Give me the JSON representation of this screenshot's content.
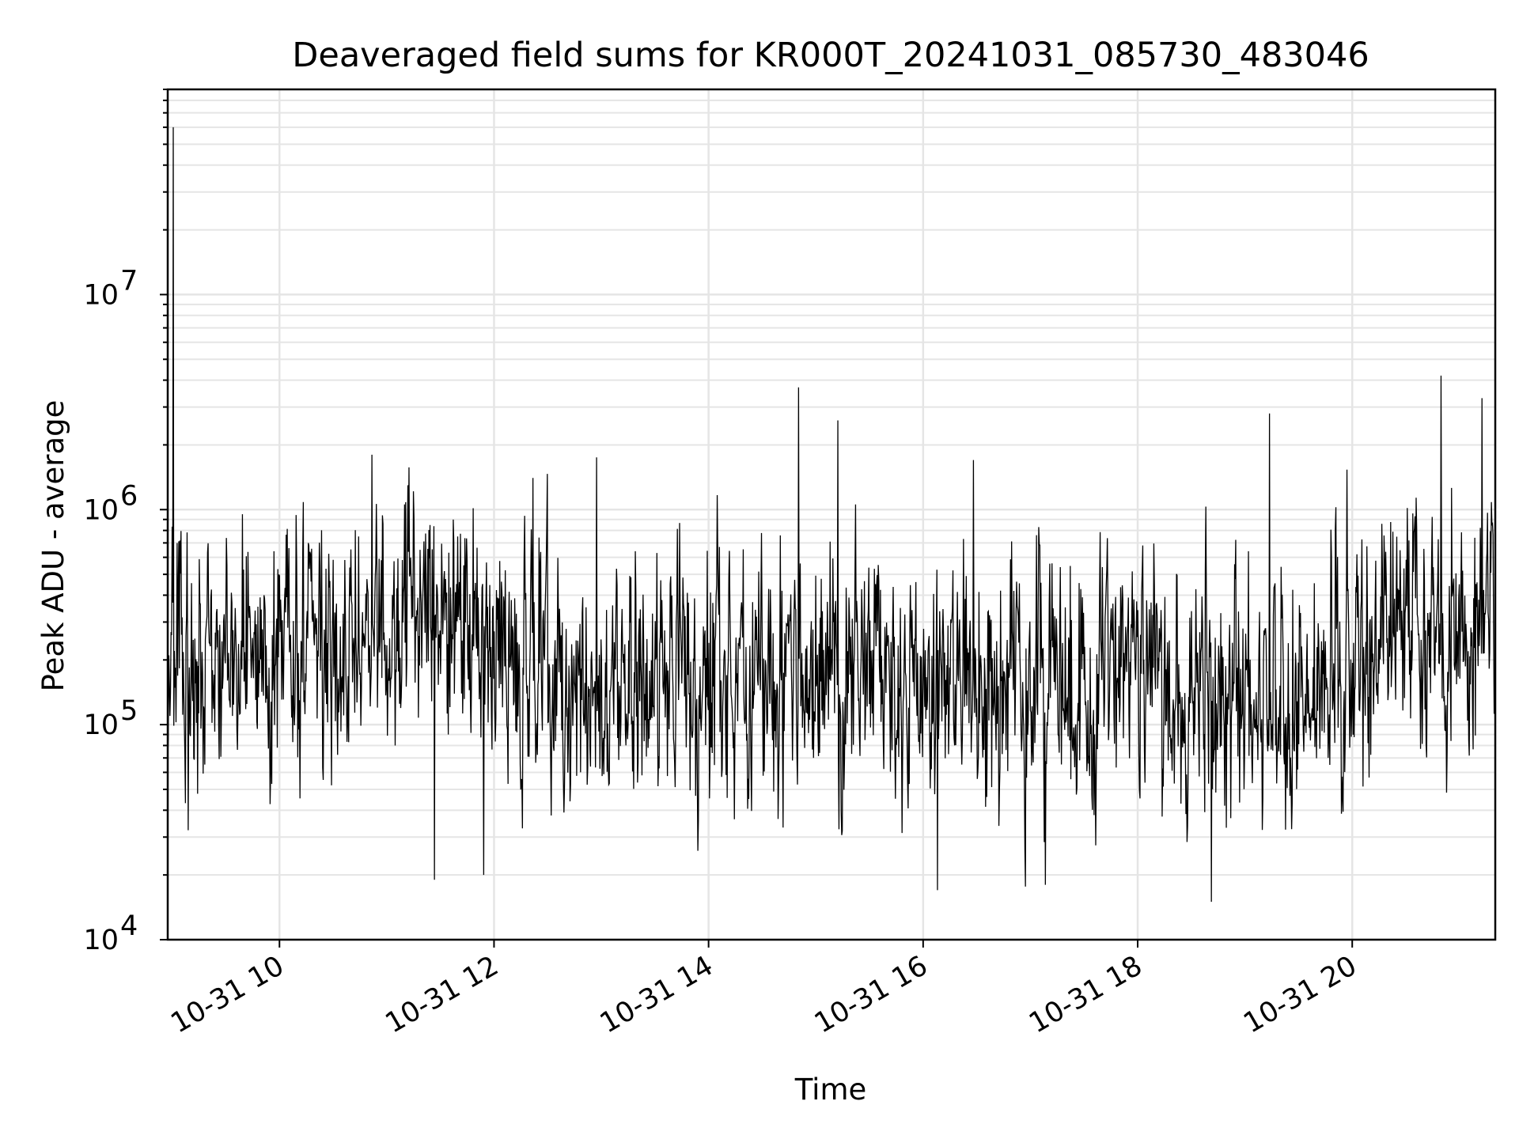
{
  "chart_data": {
    "type": "line",
    "title": "Deaveraged field sums for KR000T_20241031_085730_483046",
    "xlabel": "Time",
    "ylabel": "Peak ADU - average",
    "yscale": "log",
    "ylim": [
      10000,
      90000000
    ],
    "xlim": [
      "2024-10-31 08:57:30",
      "2024-10-31 21:20:00"
    ],
    "grid": true,
    "line_color": "#000000",
    "grid_color": "#e5e5e5",
    "x_ticks": [
      {
        "t": "2024-10-31 10:00",
        "label": "10-31 10"
      },
      {
        "t": "2024-10-31 12:00",
        "label": "10-31 12"
      },
      {
        "t": "2024-10-31 14:00",
        "label": "10-31 14"
      },
      {
        "t": "2024-10-31 16:00",
        "label": "10-31 16"
      },
      {
        "t": "2024-10-31 18:00",
        "label": "10-31 18"
      },
      {
        "t": "2024-10-31 20:00",
        "label": "10-31 20"
      }
    ],
    "y_ticks": [
      {
        "value": 10000,
        "base": "10",
        "exp": "4"
      },
      {
        "value": 100000,
        "base": "10",
        "exp": "5"
      },
      {
        "value": 1000000,
        "base": "10",
        "exp": "6"
      },
      {
        "value": 10000000,
        "base": "10",
        "exp": "7"
      }
    ],
    "series": [
      {
        "x": [
          "2024-10-31 08:57:30",
          "2024-10-31 08:58:00",
          "2024-10-31 09:00:00",
          "2024-10-31 09:01:00",
          "2024-10-31 09:20:00",
          "2024-10-31 09:30:00",
          "2024-10-31 09:38:00",
          "2024-10-31 10:00:00",
          "2024-10-31 10:20:00",
          "2024-10-31 10:35:00",
          "2024-10-31 10:55:00",
          "2024-10-31 11:15:00",
          "2024-10-31 11:30:00",
          "2024-10-31 11:35:00",
          "2024-10-31 11:50:00",
          "2024-10-31 12:05:00",
          "2024-10-31 12:25:00",
          "2024-10-31 12:30:00",
          "2024-10-31 12:50:00",
          "2024-10-31 13:00:00",
          "2024-10-31 13:30:00",
          "2024-10-31 14:00:00",
          "2024-10-31 14:30:00",
          "2024-10-31 14:45:00",
          "2024-10-31 14:50:00",
          "2024-10-31 15:00:00",
          "2024-10-31 15:15:00",
          "2024-10-31 15:30:00",
          "2024-10-31 16:00:00",
          "2024-10-31 16:15:00",
          "2024-10-31 16:30:00",
          "2024-10-31 16:50:00",
          "2024-10-31 17:10:00",
          "2024-10-31 17:30:00",
          "2024-10-31 17:45:00",
          "2024-10-31 18:00:00",
          "2024-10-31 18:20:00",
          "2024-10-31 18:40:00",
          "2024-10-31 19:00:00",
          "2024-10-31 19:20:00",
          "2024-10-31 19:40:00",
          "2024-10-31 20:00:00",
          "2024-10-31 20:20:00",
          "2024-10-31 20:40:00",
          "2024-10-31 20:50:00",
          "2024-10-31 21:00:00",
          "2024-10-31 21:10:00",
          "2024-10-31 21:20:00"
        ],
        "y": [
          200000,
          350000,
          60000000,
          250000,
          200000,
          250000,
          150000,
          250000,
          300000,
          400000,
          300000,
          180000,
          400000,
          200000,
          150000,
          220000,
          300000,
          100000,
          120000,
          220000,
          200000,
          200000,
          170000,
          180000,
          150000,
          160000,
          150000,
          140000,
          130000,
          170000,
          150000,
          160000,
          200000,
          200000,
          250000,
          130000,
          120000,
          100000,
          120000,
          160000,
          230000,
          300000,
          250000,
          250000,
          400000,
          220000,
          350000,
          450000
        ]
      }
    ],
    "noise_band": {
      "center_pts": [
        [
          0,
          220000
        ],
        [
          0.12,
          250000
        ],
        [
          0.2,
          300000
        ],
        [
          0.29,
          200000
        ],
        [
          0.3,
          110000
        ],
        [
          0.34,
          180000
        ],
        [
          0.5,
          170000
        ],
        [
          0.65,
          140000
        ],
        [
          0.72,
          160000
        ],
        [
          0.75,
          250000
        ],
        [
          0.76,
          130000
        ],
        [
          0.82,
          110000
        ],
        [
          0.87,
          160000
        ],
        [
          0.92,
          300000
        ],
        [
          0.96,
          250000
        ],
        [
          1,
          350000
        ]
      ],
      "spikes": [
        {
          "x": 0.004,
          "y": 60000000
        },
        {
          "x": 0.154,
          "y": 1800000
        },
        {
          "x": 0.323,
          "y": 1750000
        },
        {
          "x": 0.475,
          "y": 3700000
        },
        {
          "x": 0.505,
          "y": 2600000
        },
        {
          "x": 0.607,
          "y": 1700000
        },
        {
          "x": 0.83,
          "y": 2800000
        },
        {
          "x": 0.959,
          "y": 4200000
        },
        {
          "x": 0.99,
          "y": 3300000
        },
        {
          "x": 0.201,
          "y": 19000
        },
        {
          "x": 0.238,
          "y": 20000
        },
        {
          "x": 0.58,
          "y": 17000
        },
        {
          "x": 0.661,
          "y": 18000
        },
        {
          "x": 0.786,
          "y": 15000
        }
      ]
    }
  }
}
